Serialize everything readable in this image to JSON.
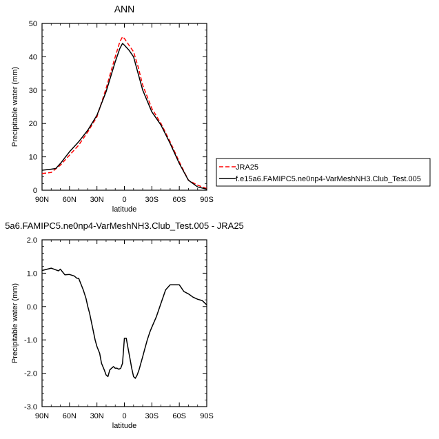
{
  "chart_data": [
    {
      "type": "line",
      "title": "ANN",
      "xlabel": "latitude",
      "ylabel": "Precipitable water (mm)",
      "xlim": [
        90,
        -90
      ],
      "ylim": [
        0,
        50
      ],
      "x_ticks": [
        {
          "value": 90,
          "label": "90N"
        },
        {
          "value": 60,
          "label": "60N"
        },
        {
          "value": 30,
          "label": "30N"
        },
        {
          "value": 0,
          "label": "0"
        },
        {
          "value": -30,
          "label": "30S"
        },
        {
          "value": -60,
          "label": "60S"
        },
        {
          "value": -90,
          "label": "90S"
        }
      ],
      "y_ticks": [
        {
          "value": 0,
          "label": "0"
        },
        {
          "value": 10,
          "label": "10"
        },
        {
          "value": 20,
          "label": "20"
        },
        {
          "value": 30,
          "label": "30"
        },
        {
          "value": 40,
          "label": "40"
        },
        {
          "value": 50,
          "label": "50"
        }
      ],
      "legend_position": "right",
      "series": [
        {
          "name": "JRA25",
          "color": "#ff0000",
          "dash": true,
          "x": [
            90,
            80,
            70,
            60,
            50,
            40,
            30,
            20,
            10,
            5,
            2,
            0,
            -5,
            -10,
            -15,
            -20,
            -30,
            -40,
            -50,
            -60,
            -70,
            -80,
            -90
          ],
          "y": [
            5.0,
            5.3,
            7.5,
            10.5,
            13.5,
            17.5,
            22.0,
            30.5,
            40.0,
            44.5,
            46.0,
            45.5,
            43.5,
            41.5,
            37.0,
            31.5,
            24.5,
            20.0,
            14.5,
            8.5,
            3.0,
            1.5,
            0.5
          ]
        },
        {
          "name": "f.e15a6.FAMIPC5.ne0np4-VarMeshNH3.Club_Test.005",
          "color": "#000000",
          "dash": false,
          "x": [
            90,
            80,
            75,
            70,
            60,
            50,
            40,
            30,
            20,
            10,
            5,
            2,
            0,
            -5,
            -10,
            -15,
            -20,
            -30,
            -40,
            -50,
            -60,
            -70,
            -80,
            -90
          ],
          "y": [
            6.0,
            6.3,
            6.5,
            8.0,
            11.5,
            14.5,
            18.0,
            22.5,
            29.5,
            38.5,
            42.5,
            44.0,
            43.5,
            42.0,
            40.0,
            35.0,
            30.0,
            23.5,
            19.5,
            14.0,
            8.0,
            3.0,
            1.0,
            0.3
          ]
        }
      ]
    },
    {
      "type": "line",
      "title": "5a6.FAMIPC5.ne0np4-VarMeshNH3.Club_Test.005 - JRA25",
      "xlabel": "latitude",
      "ylabel": "Precipitable water (mm)",
      "xlim": [
        90,
        -90
      ],
      "ylim": [
        -3.0,
        2.0
      ],
      "x_ticks": [
        {
          "value": 90,
          "label": "90N"
        },
        {
          "value": 60,
          "label": "60N"
        },
        {
          "value": 30,
          "label": "30N"
        },
        {
          "value": 0,
          "label": "0"
        },
        {
          "value": -30,
          "label": "30S"
        },
        {
          "value": -60,
          "label": "60S"
        },
        {
          "value": -90,
          "label": "90S"
        }
      ],
      "y_ticks": [
        {
          "value": -3,
          "label": "-3.0"
        },
        {
          "value": -2,
          "label": "-2.0"
        },
        {
          "value": -1,
          "label": "-1.0"
        },
        {
          "value": 0,
          "label": "0.0"
        },
        {
          "value": 1,
          "label": "1.0"
        },
        {
          "value": 2,
          "label": "2.0"
        }
      ],
      "series": [
        {
          "color": "#000000",
          "dash": false,
          "x": [
            90,
            80,
            75,
            72,
            70,
            65,
            60,
            55,
            52,
            50,
            45,
            42,
            40,
            38,
            35,
            32,
            30,
            27,
            25,
            22,
            20,
            18,
            16,
            14,
            12,
            10,
            8,
            6,
            4,
            2,
            0,
            -2,
            -4,
            -6,
            -8,
            -10,
            -12,
            -14,
            -16,
            -18,
            -20,
            -22,
            -25,
            -28,
            -30,
            -35,
            -40,
            -45,
            -50,
            -55,
            -60,
            -65,
            -70,
            -75,
            -80,
            -85,
            -90
          ],
          "y": [
            1.08,
            1.15,
            1.1,
            1.07,
            1.12,
            0.95,
            0.96,
            0.92,
            0.85,
            0.85,
            0.5,
            0.25,
            0.0,
            -0.2,
            -0.6,
            -1.0,
            -1.2,
            -1.4,
            -1.7,
            -1.9,
            -2.05,
            -2.1,
            -1.9,
            -1.85,
            -1.8,
            -1.85,
            -1.85,
            -1.88,
            -1.85,
            -1.7,
            -0.95,
            -0.95,
            -1.25,
            -1.55,
            -1.85,
            -2.1,
            -2.15,
            -2.05,
            -1.9,
            -1.7,
            -1.5,
            -1.3,
            -1.0,
            -0.75,
            -0.62,
            -0.3,
            0.1,
            0.5,
            0.65,
            0.65,
            0.65,
            0.45,
            0.38,
            0.28,
            0.22,
            0.18,
            0.05
          ]
        }
      ]
    }
  ]
}
